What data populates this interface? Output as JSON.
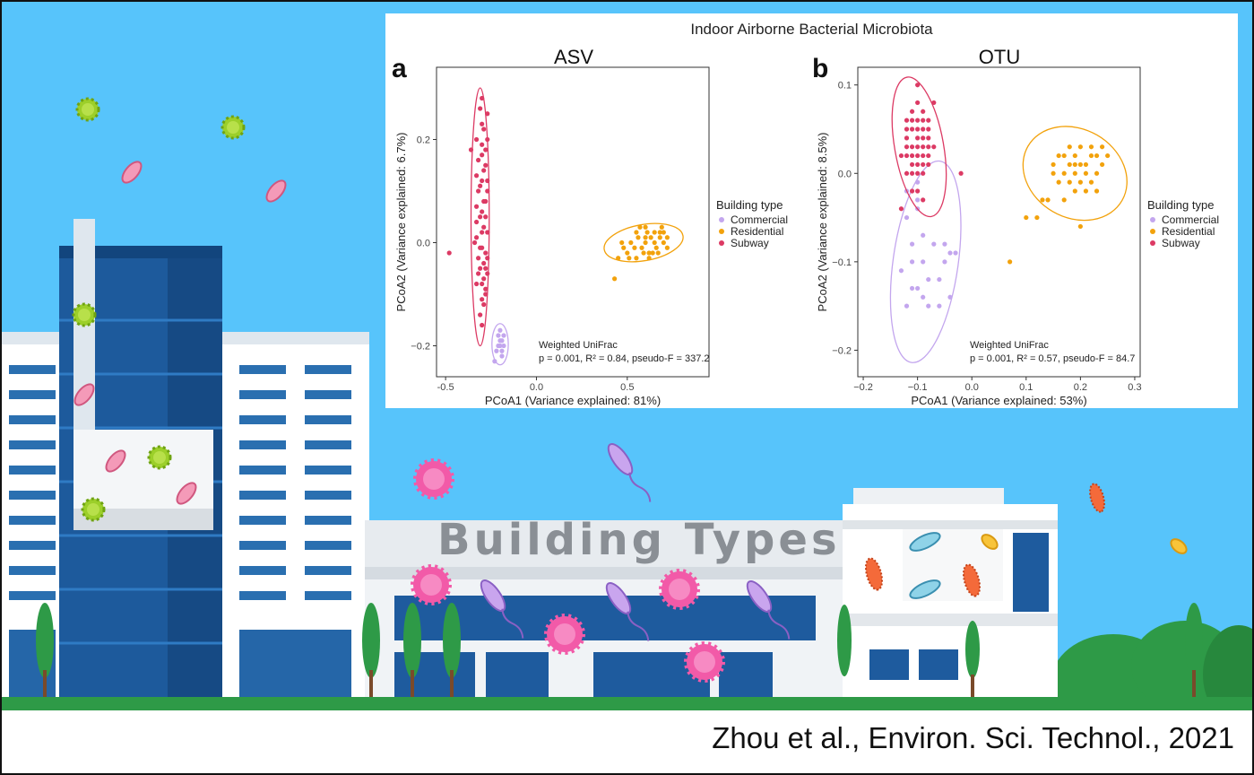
{
  "panel_title": "Indoor Airborne Bacterial Microbiota",
  "banner_text": "Building Types",
  "citation": "Zhou et al., Environ. Sci. Technol., 2021",
  "colors": {
    "sky": "#57c4fb",
    "grass": "#2e9a47",
    "commercial": "#c3a6ee",
    "residential": "#f2a20c",
    "subway": "#dc3a64"
  },
  "icons": [
    "virus-icon",
    "bacteria-icon",
    "tentacled-bacterium-icon",
    "spiky-microbe-icon"
  ],
  "chart_data": [
    {
      "type": "scatter",
      "panel_label": "a",
      "title": "ASV",
      "xlabel": "PCoA1 (Variance explained: 81%)",
      "ylabel": "PCoA2 (Variance explained: 6.7%)",
      "xlim": [
        -0.55,
        0.95
      ],
      "ylim": [
        -0.26,
        0.34
      ],
      "xticks": [
        -0.5,
        0.0,
        0.5
      ],
      "xtick_labels": [
        "-0.5",
        "0.0",
        "0.5"
      ],
      "yticks": [
        -0.2,
        0.0,
        0.2
      ],
      "ytick_labels": [
        "−0.2",
        "0.0",
        "0.2"
      ],
      "legend_title": "Building type",
      "legend_position": "right",
      "annotation_line1": "Weighted UniFrac",
      "annotation_line2": "p = 0.001, R² = 0.84, pseudo-F = 337.2",
      "series": [
        {
          "name": "Commercial",
          "points": [
            [
              -0.21,
              -0.18
            ],
            [
              -0.19,
              -0.19
            ],
            [
              -0.2,
              -0.2
            ],
            [
              -0.18,
              -0.18
            ],
            [
              -0.22,
              -0.21
            ],
            [
              -0.19,
              -0.22
            ],
            [
              -0.2,
              -0.17
            ],
            [
              -0.21,
              -0.2
            ],
            [
              -0.18,
              -0.2
            ],
            [
              -0.23,
              -0.23
            ],
            [
              -0.2,
              -0.19
            ],
            [
              -0.19,
              -0.21
            ]
          ],
          "ellipse": {
            "cx": -0.2,
            "cy": -0.197,
            "rx": 0.045,
            "ry": 0.04,
            "angle": 0
          }
        },
        {
          "name": "Residential",
          "points": [
            [
              0.55,
              0.02
            ],
            [
              0.6,
              0.01
            ],
            [
              0.65,
              0.0
            ],
            [
              0.7,
              0.02
            ],
            [
              0.58,
              -0.01
            ],
            [
              0.62,
              -0.02
            ],
            [
              0.68,
              0.01
            ],
            [
              0.72,
              0.01
            ],
            [
              0.5,
              -0.02
            ],
            [
              0.55,
              -0.03
            ],
            [
              0.6,
              0.0
            ],
            [
              0.65,
              0.02
            ],
            [
              0.57,
              0.03
            ],
            [
              0.66,
              -0.01
            ],
            [
              0.7,
              0.0
            ],
            [
              0.52,
              0.0
            ],
            [
              0.48,
              -0.01
            ],
            [
              0.63,
              0.01
            ],
            [
              0.59,
              -0.02
            ],
            [
              0.69,
              0.03
            ],
            [
              0.54,
              -0.01
            ],
            [
              0.61,
              0.02
            ],
            [
              0.67,
              -0.02
            ],
            [
              0.45,
              -0.03
            ],
            [
              0.72,
              -0.01
            ],
            [
              0.64,
              -0.02
            ],
            [
              0.56,
              0.01
            ],
            [
              0.6,
              0.03
            ],
            [
              0.51,
              -0.03
            ],
            [
              0.47,
              0.0
            ],
            [
              0.68,
              0.02
            ],
            [
              0.62,
              -0.03
            ],
            [
              0.43,
              -0.07
            ]
          ],
          "ellipse": {
            "cx": 0.59,
            "cy": 0.0,
            "rx": 0.22,
            "ry": 0.035,
            "angle": 10
          }
        },
        {
          "name": "Subway",
          "points": [
            [
              -0.3,
              0.28
            ],
            [
              -0.27,
              0.25
            ],
            [
              -0.3,
              0.23
            ],
            [
              -0.33,
              0.2
            ],
            [
              -0.27,
              0.2
            ],
            [
              -0.3,
              0.17
            ],
            [
              -0.36,
              0.18
            ],
            [
              -0.28,
              0.15
            ],
            [
              -0.33,
              0.13
            ],
            [
              -0.3,
              0.12
            ],
            [
              -0.27,
              0.1
            ],
            [
              -0.32,
              0.1
            ],
            [
              -0.29,
              0.08
            ],
            [
              -0.31,
              0.05
            ],
            [
              -0.28,
              0.05
            ],
            [
              -0.33,
              0.04
            ],
            [
              -0.3,
              0.02
            ],
            [
              -0.27,
              0.02
            ],
            [
              -0.34,
              0.0
            ],
            [
              -0.3,
              -0.01
            ],
            [
              -0.28,
              -0.02
            ],
            [
              -0.32,
              -0.03
            ],
            [
              -0.29,
              -0.04
            ],
            [
              -0.31,
              -0.05
            ],
            [
              -0.27,
              -0.06
            ],
            [
              -0.3,
              -0.08
            ],
            [
              -0.28,
              -0.1
            ],
            [
              -0.33,
              -0.08
            ],
            [
              -0.29,
              -0.12
            ],
            [
              -0.31,
              -0.14
            ],
            [
              -0.3,
              -0.16
            ],
            [
              -0.29,
              0.22
            ],
            [
              -0.31,
              0.26
            ],
            [
              -0.28,
              0.18
            ],
            [
              -0.32,
              0.16
            ],
            [
              -0.29,
              0.14
            ],
            [
              -0.33,
              0.07
            ],
            [
              -0.28,
              0.08
            ],
            [
              -0.3,
              0.06
            ],
            [
              -0.31,
              -0.01
            ],
            [
              -0.27,
              -0.03
            ],
            [
              -0.32,
              -0.06
            ],
            [
              -0.29,
              -0.07
            ],
            [
              -0.3,
              -0.11
            ],
            [
              -0.28,
              -0.09
            ],
            [
              -0.31,
              0.11
            ],
            [
              -0.29,
              0.03
            ],
            [
              -0.3,
              0.19
            ],
            [
              -0.48,
              -0.02
            ],
            [
              -0.27,
              0.12
            ],
            [
              -0.33,
              0.01
            ],
            [
              -0.28,
              -0.05
            ]
          ],
          "ellipse": {
            "cx": -0.31,
            "cy": 0.05,
            "rx": 0.05,
            "ry": 0.25,
            "angle": 0
          }
        }
      ]
    },
    {
      "type": "scatter",
      "panel_label": "b",
      "title": "OTU",
      "xlabel": "PCoA1 (Variance explained: 53%)",
      "ylabel": "PCoA2 (Variance explained: 8.5%)",
      "xlim": [
        -0.21,
        0.31
      ],
      "ylim": [
        -0.23,
        0.12
      ],
      "xticks": [
        -0.2,
        -0.1,
        0.0,
        0.1,
        0.2,
        0.3
      ],
      "xtick_labels": [
        "−0.2",
        "−0.1",
        "0.0",
        "0.1",
        "0.2",
        "0.3"
      ],
      "yticks": [
        -0.2,
        -0.1,
        0.0,
        0.1
      ],
      "ytick_labels": [
        "−0.2",
        "−0.1",
        "0.0",
        "0.1"
      ],
      "legend_title": "Building type",
      "legend_position": "right",
      "annotation_line1": "Weighted UniFrac",
      "annotation_line2": "p = 0.001, R² = 0.57, pseudo-F = 84.7",
      "series": [
        {
          "name": "Commercial",
          "points": [
            [
              -0.1,
              -0.03
            ],
            [
              -0.12,
              -0.05
            ],
            [
              -0.09,
              -0.07
            ],
            [
              -0.11,
              -0.1
            ],
            [
              -0.08,
              -0.12
            ],
            [
              -0.1,
              -0.13
            ],
            [
              -0.12,
              -0.15
            ],
            [
              -0.09,
              -0.1
            ],
            [
              -0.07,
              -0.08
            ],
            [
              -0.05,
              -0.1
            ],
            [
              -0.04,
              -0.14
            ],
            [
              -0.06,
              -0.15
            ],
            [
              -0.03,
              -0.09
            ],
            [
              -0.1,
              -0.04
            ],
            [
              -0.12,
              -0.02
            ],
            [
              -0.11,
              -0.08
            ],
            [
              -0.08,
              -0.15
            ],
            [
              -0.05,
              -0.08
            ],
            [
              -0.13,
              -0.11
            ],
            [
              -0.1,
              -0.01
            ],
            [
              -0.06,
              -0.12
            ],
            [
              -0.09,
              -0.14
            ],
            [
              -0.11,
              -0.13
            ],
            [
              -0.04,
              -0.09
            ]
          ],
          "ellipse": {
            "cx": -0.085,
            "cy": -0.1,
            "rx": 0.06,
            "ry": 0.115,
            "angle": -8
          }
        },
        {
          "name": "Residential",
          "points": [
            [
              0.15,
              0.01
            ],
            [
              0.17,
              0.0
            ],
            [
              0.19,
              0.02
            ],
            [
              0.2,
              0.01
            ],
            [
              0.22,
              0.02
            ],
            [
              0.24,
              0.03
            ],
            [
              0.18,
              0.03
            ],
            [
              0.16,
              -0.01
            ],
            [
              0.21,
              -0.02
            ],
            [
              0.23,
              0.0
            ],
            [
              0.19,
              -0.02
            ],
            [
              0.2,
              0.03
            ],
            [
              0.22,
              -0.01
            ],
            [
              0.17,
              0.02
            ],
            [
              0.18,
              -0.01
            ],
            [
              0.21,
              0.01
            ],
            [
              0.23,
              0.02
            ],
            [
              0.16,
              0.02
            ],
            [
              0.2,
              -0.01
            ],
            [
              0.24,
              0.01
            ],
            [
              0.14,
              -0.03
            ],
            [
              0.12,
              -0.05
            ],
            [
              0.19,
              0.0
            ],
            [
              0.22,
              0.03
            ],
            [
              0.18,
              0.01
            ],
            [
              0.21,
              0.0
            ],
            [
              0.17,
              -0.03
            ],
            [
              0.2,
              -0.06
            ],
            [
              0.25,
              0.02
            ],
            [
              0.15,
              0.0
            ],
            [
              0.19,
              0.01
            ],
            [
              0.13,
              -0.03
            ],
            [
              0.23,
              -0.02
            ],
            [
              0.07,
              -0.1
            ],
            [
              0.1,
              -0.05
            ]
          ],
          "ellipse": {
            "cx": 0.19,
            "cy": 0.0,
            "rx": 0.1,
            "ry": 0.05,
            "angle": -30
          }
        },
        {
          "name": "Subway",
          "points": [
            [
              -0.1,
              0.1
            ],
            [
              -0.09,
              0.07
            ],
            [
              -0.11,
              0.06
            ],
            [
              -0.08,
              0.05
            ],
            [
              -0.1,
              0.04
            ],
            [
              -0.12,
              0.04
            ],
            [
              -0.09,
              0.03
            ],
            [
              -0.11,
              0.03
            ],
            [
              -0.08,
              0.02
            ],
            [
              -0.1,
              0.02
            ],
            [
              -0.12,
              0.02
            ],
            [
              -0.09,
              0.01
            ],
            [
              -0.1,
              0.0
            ],
            [
              -0.11,
              0.05
            ],
            [
              -0.09,
              0.05
            ],
            [
              -0.08,
              0.04
            ],
            [
              -0.12,
              0.03
            ],
            [
              -0.1,
              0.06
            ],
            [
              -0.1,
              0.08
            ],
            [
              -0.07,
              0.03
            ],
            [
              -0.13,
              0.02
            ],
            [
              -0.11,
              0.01
            ],
            [
              -0.09,
              0.02
            ],
            [
              -0.08,
              0.06
            ],
            [
              -0.1,
              0.03
            ],
            [
              -0.12,
              0.05
            ],
            [
              -0.11,
              0.0
            ],
            [
              -0.09,
              0.0
            ],
            [
              -0.13,
              -0.04
            ],
            [
              -0.07,
              0.08
            ],
            [
              -0.1,
              -0.02
            ],
            [
              -0.09,
              -0.03
            ],
            [
              -0.11,
              0.07
            ],
            [
              -0.08,
              0.01
            ],
            [
              -0.12,
              0.06
            ],
            [
              -0.1,
              0.05
            ],
            [
              -0.09,
              0.04
            ],
            [
              -0.11,
              0.02
            ],
            [
              -0.08,
              0.03
            ],
            [
              -0.1,
              0.01
            ],
            [
              -0.02,
              0.0
            ],
            [
              -0.11,
              -0.02
            ],
            [
              -0.09,
              0.06
            ],
            [
              -0.12,
              0.0
            ]
          ],
          "ellipse": {
            "cx": -0.097,
            "cy": 0.03,
            "rx": 0.045,
            "ry": 0.08,
            "angle": 10
          }
        }
      ]
    }
  ]
}
